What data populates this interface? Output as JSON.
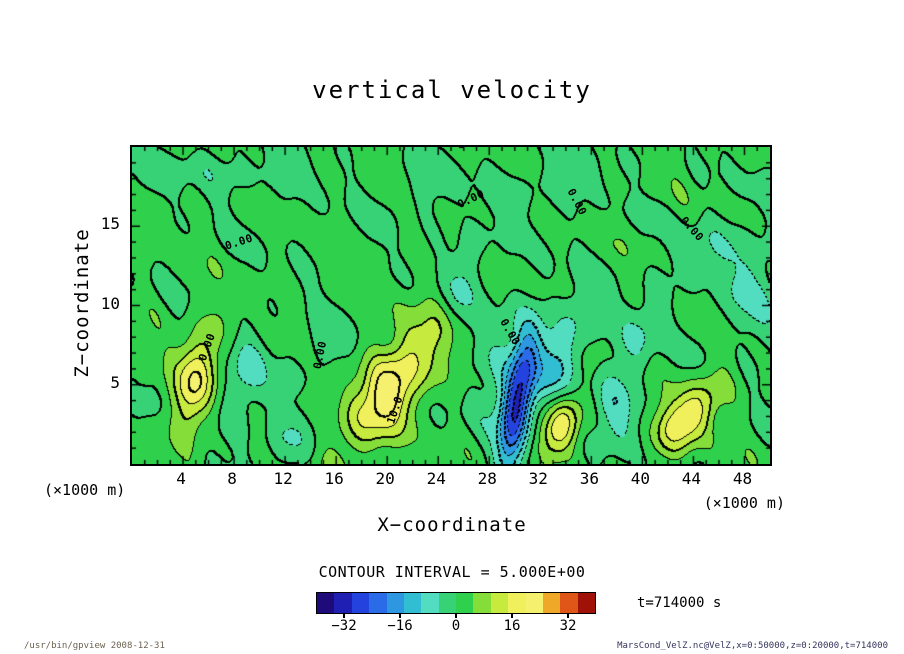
{
  "header": {
    "title": "vertical velocity"
  },
  "axis": {
    "x_label": "X−coordinate",
    "y_label": "Z−coordinate",
    "x_unit": "(×1000 m)",
    "z_unit": "(×1000 m)"
  },
  "legend": {
    "contour_interval_text": "CONTOUR INTERVAL = 5.000E+00",
    "time_text": "t=714000 s"
  },
  "footer": {
    "left": "/usr/bin/gpview  2008-12-31",
    "right": "MarsCond_VelZ.nc@VelZ,x=0:50000,z=0:20000,t=714000"
  },
  "chart_data": {
    "type": "contour",
    "title": "vertical velocity",
    "xlabel": "X−coordinate",
    "ylabel": "Z−coordinate",
    "x_range": [
      0,
      50
    ],
    "z_range": [
      0,
      20
    ],
    "x_ticks": [
      4,
      8,
      12,
      16,
      20,
      24,
      28,
      32,
      36,
      40,
      44,
      48
    ],
    "x_minor_step": 1,
    "z_ticks": [
      5,
      10,
      15
    ],
    "z_minor_step": 1,
    "contour_interval": 5.0,
    "value_range": [
      -40,
      40
    ],
    "colormap": [
      "#1e0a78",
      "#1f1fb4",
      "#2443de",
      "#2a6ce8",
      "#2e97e2",
      "#32bed2",
      "#52dcc0",
      "#38d276",
      "#2fd04c",
      "#85dd3a",
      "#c6ea3e",
      "#eff05c",
      "#f5f06e",
      "#f0a828",
      "#e05618",
      "#a01208"
    ],
    "colorbar_ticks": [
      {
        "value": -32,
        "label": "−32"
      },
      {
        "value": -16,
        "label": "−16"
      },
      {
        "value": 0,
        "label": "0"
      },
      {
        "value": 16,
        "label": "16"
      },
      {
        "value": 32,
        "label": "32"
      }
    ],
    "contour_labels": [
      {
        "text": "0.00",
        "x": 8.4,
        "z": 14.0,
        "rot": -18
      },
      {
        "text": "0.00",
        "x": 26.6,
        "z": 16.7,
        "rot": -25
      },
      {
        "text": "0.00",
        "x": 34.9,
        "z": 16.5,
        "rot": 62
      },
      {
        "text": "0.00",
        "x": 43.9,
        "z": 14.8,
        "rot": 48
      },
      {
        "text": "0.00",
        "x": 5.9,
        "z": 7.4,
        "rot": -70
      },
      {
        "text": "0.00",
        "x": 14.7,
        "z": 6.9,
        "rot": -78
      },
      {
        "text": "0.00",
        "x": 29.6,
        "z": 8.3,
        "rot": 60
      },
      {
        "text": "10.0",
        "x": 20.6,
        "z": 3.4,
        "rot": -72
      }
    ],
    "field_model": {
      "base": 1.3,
      "gaussians": [
        {
          "x": 5.0,
          "z": 5.3,
          "a": 18,
          "sx": 2.4,
          "sz": 1.1,
          "rot": 75
        },
        {
          "x": 20.3,
          "z": 4.8,
          "a": 21,
          "sx": 3.4,
          "sz": 1.5,
          "rot": 48
        },
        {
          "x": 33.6,
          "z": 2.4,
          "a": 19,
          "sx": 1.5,
          "sz": 1.0,
          "rot": 60
        },
        {
          "x": 43.6,
          "z": 3.0,
          "a": 18,
          "sx": 2.2,
          "sz": 1.1,
          "rot": 40
        },
        {
          "x": 30.2,
          "z": 3.8,
          "a": -27,
          "sx": 2.8,
          "sz": 0.75,
          "rot": 78
        },
        {
          "x": 30.6,
          "z": 5.5,
          "a": -10,
          "sx": 2.8,
          "sz": 2.2,
          "rot": 90
        },
        {
          "x": 8.7,
          "z": 5.2,
          "a": -9,
          "sx": 2.0,
          "sz": 1.1,
          "rot": 80
        },
        {
          "x": 12.2,
          "z": 1.3,
          "a": -6,
          "sx": 1.6,
          "sz": 1.2,
          "rot": 0
        },
        {
          "x": 26.3,
          "z": 12.3,
          "a": -6,
          "sx": 2.4,
          "sz": 1.0,
          "rot": 75
        },
        {
          "x": 34.2,
          "z": 7.8,
          "a": -8,
          "sx": 2.4,
          "sz": 1.1,
          "rot": 72
        },
        {
          "x": 37.8,
          "z": 3.5,
          "a": -8,
          "sx": 2.4,
          "sz": 1.2,
          "rot": 80
        },
        {
          "x": 40.2,
          "z": 8.6,
          "a": -6,
          "sx": 2.0,
          "sz": 1.1,
          "rot": 65
        },
        {
          "x": 48.8,
          "z": 11.5,
          "a": -6,
          "sx": 3.2,
          "sz": 1.8,
          "rot": 90
        },
        {
          "x": 7.0,
          "z": 18.6,
          "a": -4,
          "sx": 5.0,
          "sz": 1.1,
          "rot": 0
        },
        {
          "x": 23.0,
          "z": 17.2,
          "a": -4,
          "sx": 2.0,
          "sz": 1.1,
          "rot": 10
        },
        {
          "x": 33.0,
          "z": 17.8,
          "a": -4.5,
          "sx": 2.6,
          "sz": 1.2,
          "rot": 0
        },
        {
          "x": 44.5,
          "z": 13.5,
          "a": -4,
          "sx": 2.0,
          "sz": 1.5,
          "rot": 30
        },
        {
          "x": 14.6,
          "z": 7.2,
          "a": -5,
          "sx": 1.1,
          "sz": 1.6,
          "rot": 80
        }
      ],
      "waves": [
        {
          "a": 1.6,
          "kx": 0.55,
          "kz": 0.85,
          "p": 0.4
        },
        {
          "a": 1.3,
          "kx": 1.15,
          "kz": 0.4,
          "p": 2.2
        },
        {
          "a": 1.1,
          "kx": 0.32,
          "kz": 1.65,
          "p": 4.1
        },
        {
          "a": 0.9,
          "kx": 1.65,
          "kz": 1.05,
          "p": 1.1
        },
        {
          "a": 0.7,
          "kx": 2.3,
          "kz": 0.7,
          "p": 3.3
        }
      ]
    }
  }
}
